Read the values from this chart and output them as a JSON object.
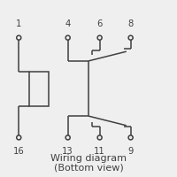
{
  "title_line1": "Wiring diagram",
  "title_line2": "(Bottom view)",
  "bg_color": "#efefef",
  "line_color": "#404040",
  "figsize": [
    2.0,
    2.0
  ],
  "dpi": 100,
  "lw": 1.1,
  "circle_r": 0.013
}
